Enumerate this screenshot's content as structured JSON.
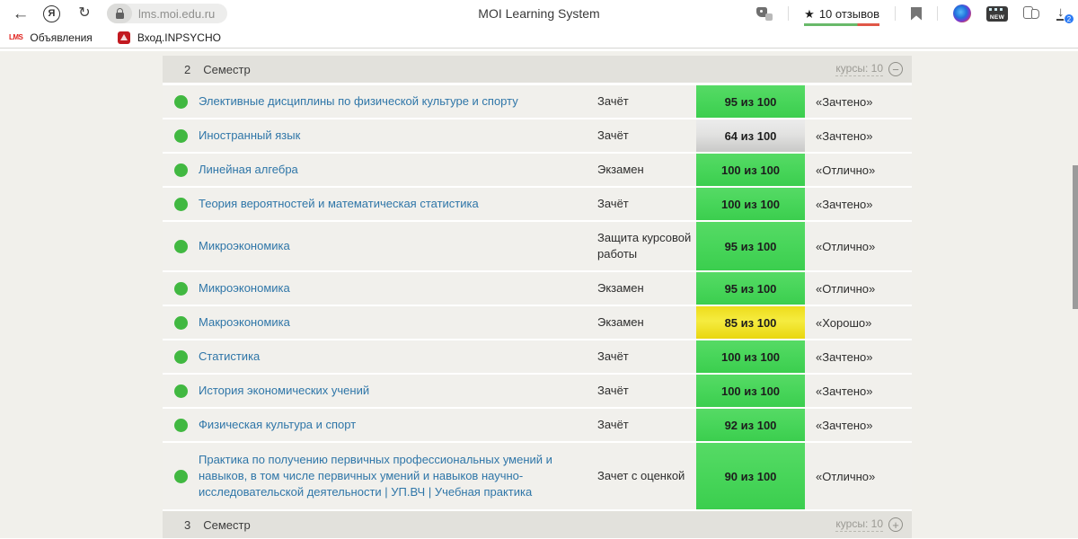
{
  "icons": {
    "back": "←",
    "refresh": "↻",
    "yandex_logo": "Я",
    "star": "★",
    "download_arrow": "↓",
    "collapse": "−",
    "expand": "+"
  },
  "browser": {
    "url": "lms.moi.edu.ru",
    "page_title": "MOI Learning System",
    "reviews_label": "10 отзывов",
    "new_badge_label": "NEW",
    "downloads_badge": "2",
    "bookmarks": [
      {
        "favicon_text": "LMS",
        "label": "Объявления"
      },
      {
        "label": "Вход.INPSYCHO"
      }
    ]
  },
  "colors": {
    "score_green": "#47d659",
    "score_yellow": "#f2e41f",
    "score_silver": "#d9d9d9",
    "status_dot_green": "#41b841",
    "course_link_blue": "#2f76a8",
    "reviews_bar_green": "#69b96a",
    "reviews_bar_red": "#e05747"
  },
  "semesters": [
    {
      "number": "2",
      "label": "Семестр",
      "courses_label": "курсы: 10",
      "toggle_state": "collapse"
    },
    {
      "number": "3",
      "label": "Семестр",
      "courses_label": "курсы: 10",
      "toggle_state": "expand"
    }
  ],
  "courses": [
    {
      "name": "Элективные дисциплины по физической культуре и спорту",
      "type": "Зачёт",
      "score": "95 из 100",
      "grade": "«Зачтено»",
      "score_style": "green",
      "status": "green"
    },
    {
      "name": "Иностранный язык",
      "type": "Зачёт",
      "score": "64 из 100",
      "grade": "«Зачтено»",
      "score_style": "silver",
      "status": "green"
    },
    {
      "name": "Линейная алгебра",
      "type": "Экзамен",
      "score": "100 из 100",
      "grade": "«Отлично»",
      "score_style": "green",
      "status": "green"
    },
    {
      "name": "Теория вероятностей и математическая статистика",
      "type": "Зачёт",
      "score": "100 из 100",
      "grade": "«Зачтено»",
      "score_style": "green",
      "status": "green"
    },
    {
      "name": "Микроэкономика",
      "type": "Защита курсовой работы",
      "score": "95 из 100",
      "grade": "«Отлично»",
      "score_style": "green",
      "status": "green"
    },
    {
      "name": "Микроэкономика",
      "type": "Экзамен",
      "score": "95 из 100",
      "grade": "«Отлично»",
      "score_style": "green",
      "status": "green"
    },
    {
      "name": "Макроэкономика",
      "type": "Экзамен",
      "score": "85 из 100",
      "grade": "«Хорошо»",
      "score_style": "yellow",
      "status": "green"
    },
    {
      "name": "Статистика",
      "type": "Зачёт",
      "score": "100 из 100",
      "grade": "«Зачтено»",
      "score_style": "green",
      "status": "green"
    },
    {
      "name": "История экономических учений",
      "type": "Зачёт",
      "score": "100 из 100",
      "grade": "«Зачтено»",
      "score_style": "green",
      "status": "green"
    },
    {
      "name": "Физическая культура и спорт",
      "type": "Зачёт",
      "score": "92 из 100",
      "grade": "«Зачтено»",
      "score_style": "green",
      "status": "green"
    },
    {
      "name": "Практика по получению первичных профессиональных умений и навыков, в том числе первичных умений и навыков научно-исследовательской деятельности | УП.ВЧ | Учебная практика",
      "type": "Зачет с оценкой",
      "score": "90 из 100",
      "grade": "«Отлично»",
      "score_style": "green",
      "status": "green"
    }
  ]
}
